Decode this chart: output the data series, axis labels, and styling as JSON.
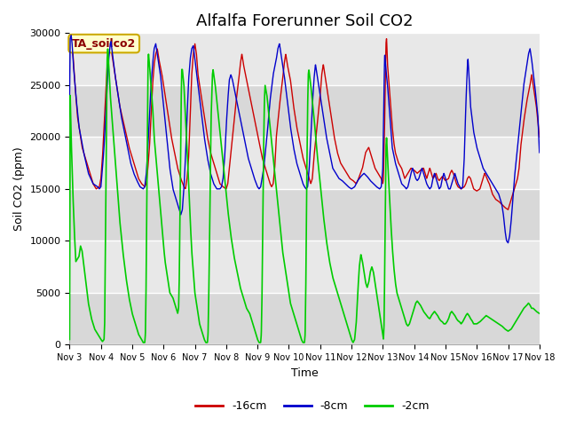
{
  "title": "Alfalfa Forerunner Soil CO2",
  "ylabel": "Soil CO2 (ppm)",
  "xlabel": "Time",
  "legend_label": "TA_soilco2",
  "series_labels": [
    "-16cm",
    "-8cm",
    "-2cm"
  ],
  "series_colors": [
    "#cc0000",
    "#0000cc",
    "#00cc00"
  ],
  "xlim": [
    0,
    15
  ],
  "ylim": [
    0,
    30000
  ],
  "yticks": [
    0,
    5000,
    10000,
    15000,
    20000,
    25000,
    30000
  ],
  "xtick_labels": [
    "Nov 3",
    "Nov 4",
    "Nov 5",
    "Nov 6",
    "Nov 7",
    "Nov 8",
    "Nov 9",
    "Nov 10",
    "Nov 11",
    "Nov 12",
    "Nov 13",
    "Nov 14",
    "Nov 15",
    "Nov 16",
    "Nov 17",
    "Nov 18"
  ],
  "plot_bg_color": "#e8e8e8",
  "title_fontsize": 13,
  "band_colors": [
    "#d8d8d8",
    "#e8e8e8"
  ]
}
